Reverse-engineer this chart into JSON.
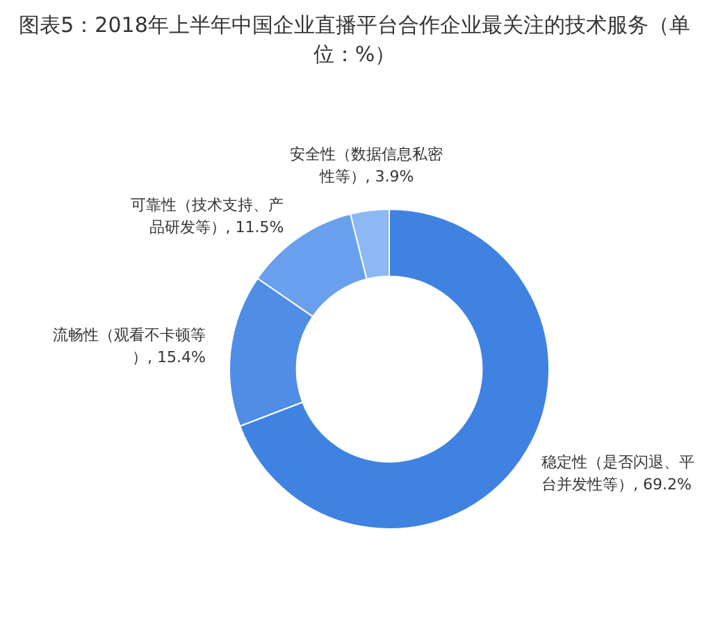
{
  "chart_data": {
    "type": "donut",
    "title": "图表5：2018年上半年中国企业直播平台合作企业最关注的技术服务（单位：%）",
    "categories": [
      "稳定性（是否闪退、平台并发性等）",
      "流畅性（观看不卡顿等）",
      "可靠性（技术支持、产品研发等）",
      "安全性（数据信息私密性等）"
    ],
    "values": [
      69.2,
      15.4,
      11.5,
      3.9
    ],
    "value_labels": [
      "69.2%",
      "15.4%",
      "11.5%",
      "3.9%"
    ],
    "colors": [
      "#3f82e2",
      "#4f8de6",
      "#6a9fee",
      "#8cb8f4"
    ],
    "legend": false
  }
}
